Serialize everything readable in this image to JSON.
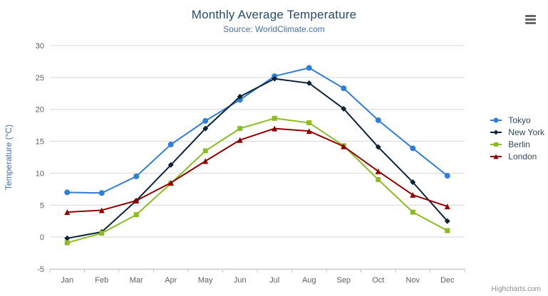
{
  "header": {
    "title": "Monthly Average Temperature",
    "subtitle": "Source: WorldClimate.com"
  },
  "chart_data": {
    "type": "line",
    "title": "Monthly Average Temperature",
    "subtitle": "Source: WorldClimate.com",
    "categories": [
      "Jan",
      "Feb",
      "Mar",
      "Apr",
      "May",
      "Jun",
      "Jul",
      "Aug",
      "Sep",
      "Oct",
      "Nov",
      "Dec"
    ],
    "series": [
      {
        "name": "Tokyo",
        "color": "#2f7ed8",
        "marker": "circle",
        "values": [
          7.0,
          6.9,
          9.5,
          14.5,
          18.2,
          21.5,
          25.2,
          26.5,
          23.3,
          18.3,
          13.9,
          9.6
        ]
      },
      {
        "name": "New York",
        "color": "#0d233a",
        "marker": "diamond",
        "values": [
          -0.2,
          0.8,
          5.7,
          11.3,
          17.0,
          22.0,
          24.8,
          24.1,
          20.1,
          14.1,
          8.6,
          2.5
        ]
      },
      {
        "name": "Berlin",
        "color": "#8bbc21",
        "marker": "square",
        "values": [
          -0.9,
          0.6,
          3.5,
          8.4,
          13.5,
          17.0,
          18.6,
          17.9,
          14.3,
          9.0,
          3.9,
          1.0
        ]
      },
      {
        "name": "London",
        "color": "#910000",
        "marker": "triangle",
        "values": [
          3.9,
          4.2,
          5.7,
          8.5,
          11.9,
          15.2,
          17.0,
          16.6,
          14.2,
          10.3,
          6.6,
          4.8
        ]
      }
    ],
    "xlabel": "",
    "ylabel": "Temperature (°C)",
    "ylim": [
      -5,
      30
    ],
    "ytick_interval": 5,
    "grid": true,
    "legend_position": "right"
  },
  "colors": {
    "title": "#274b6d",
    "subtitle": "#4572a7",
    "axis_label": "#606060",
    "gridline": "#d8d8d8",
    "axis_line": "#c0c8d0"
  },
  "credits": {
    "text": "Highcharts.com"
  }
}
